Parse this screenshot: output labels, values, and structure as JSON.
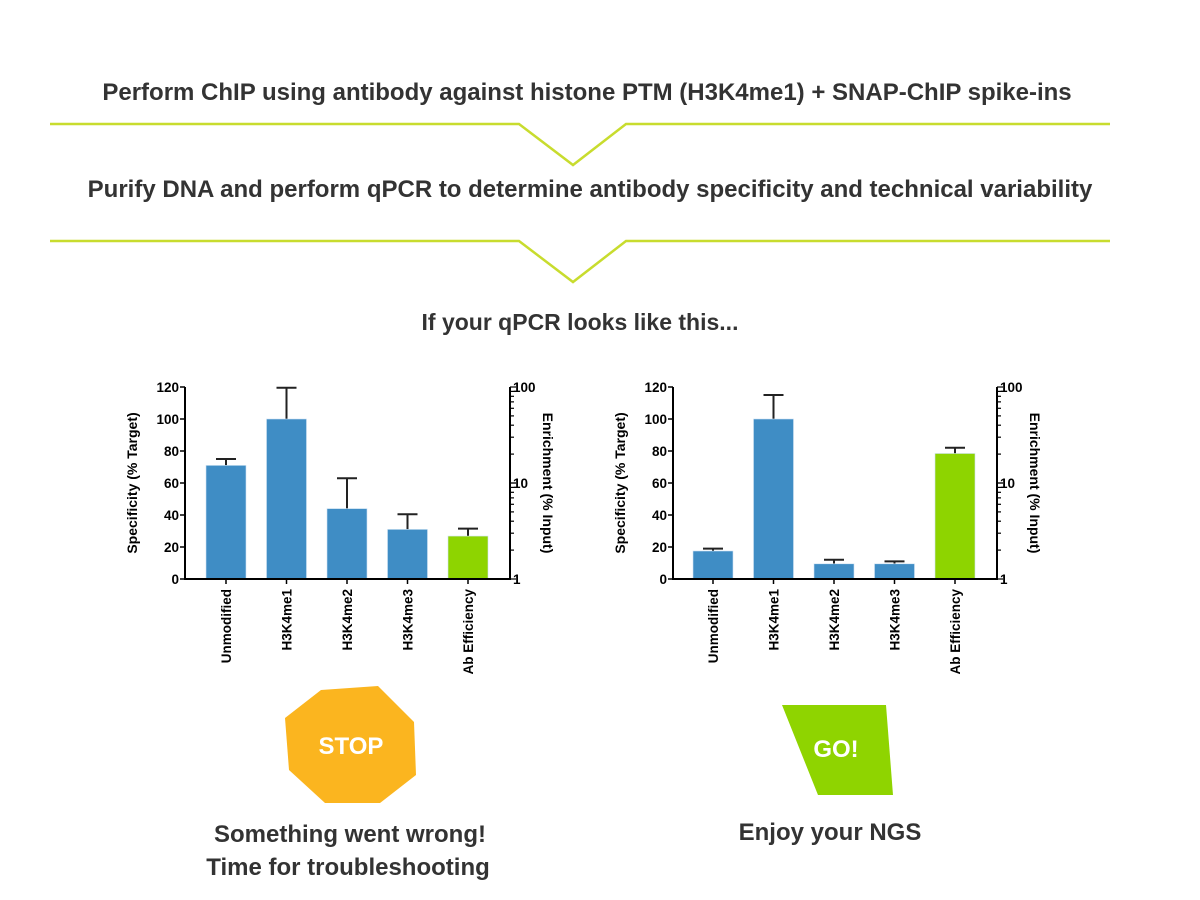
{
  "steps": {
    "step1": "Perform ChIP using antibody against histone PTM (H3K4me1) + SNAP-ChIP spike-ins",
    "step2": "Purify DNA and perform qPCR to determine antibody specificity and technical variability",
    "prompt": "If your qPCR looks like this..."
  },
  "outcomes": {
    "stop_label": "STOP",
    "stop_line1": "Something went wrong!",
    "stop_line2": "Time for troubleshooting",
    "go_label": "GO!",
    "go_line1": "Enjoy your NGS"
  },
  "colors": {
    "bar_blue": "#3f8dc5",
    "bar_green": "#8ed400",
    "divider": "#c8dc2e",
    "stop": "#fbb51f",
    "go": "#8fd400",
    "text": "#333333"
  },
  "chart_data": [
    {
      "type": "bar",
      "title": "",
      "categories": [
        "Unmodified",
        "H3K4me1",
        "H3K4me2",
        "H3K4me3",
        "Ab Efficiency"
      ],
      "ylabel": "Specificity (% Target)",
      "y2label": "Enrichment (% Input)",
      "ylim": [
        0,
        120
      ],
      "yticks": [
        "0",
        "20",
        "40",
        "60",
        "80",
        "100",
        "120"
      ],
      "y2lim": [
        1,
        100
      ],
      "y2scale": "log",
      "y2ticks": [
        "1",
        "10",
        "100"
      ],
      "series": [
        {
          "name": "Specificity (% Target)",
          "axis": "left",
          "values": [
            71,
            100,
            44,
            31,
            null
          ],
          "error_upper": [
            75,
            119.5,
            63,
            40.5,
            null
          ]
        },
        {
          "name": "Enrichment (% Input)",
          "axis": "right",
          "values": [
            null,
            null,
            null,
            null,
            2.8
          ],
          "error_upper": [
            null,
            null,
            null,
            null,
            3.35
          ]
        }
      ]
    },
    {
      "type": "bar",
      "title": "",
      "categories": [
        "Unmodified",
        "H3K4me1",
        "H3K4me2",
        "H3K4me3",
        "Ab Efficiency"
      ],
      "ylabel": "Specificity (% Target)",
      "y2label": "Enrichment (% Input)",
      "ylim": [
        0,
        120
      ],
      "yticks": [
        "0",
        "20",
        "40",
        "60",
        "80",
        "100",
        "120"
      ],
      "y2lim": [
        1,
        100
      ],
      "y2scale": "log",
      "y2ticks": [
        "1",
        "10",
        "100"
      ],
      "series": [
        {
          "name": "Specificity (% Target)",
          "axis": "left",
          "values": [
            17.5,
            100,
            9.5,
            9.5,
            null
          ],
          "error_upper": [
            19,
            115,
            12,
            11,
            null
          ]
        },
        {
          "name": "Enrichment (% Input)",
          "axis": "right",
          "values": [
            null,
            null,
            null,
            null,
            20.3
          ],
          "error_upper": [
            null,
            null,
            null,
            null,
            23.3
          ]
        }
      ]
    }
  ]
}
